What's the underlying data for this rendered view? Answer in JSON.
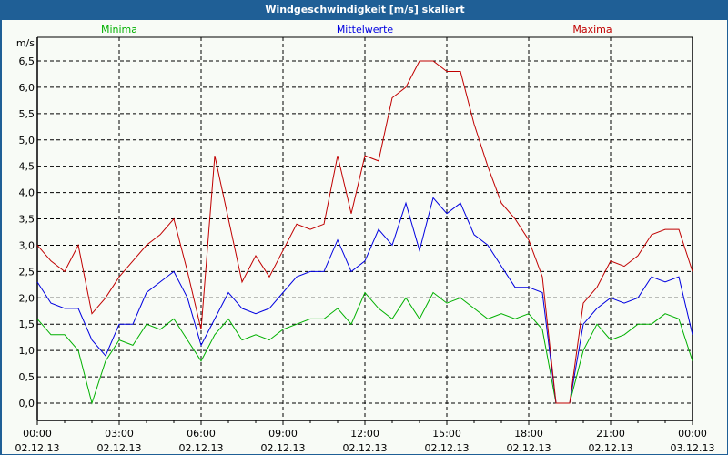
{
  "window": {
    "title": "Windgeschwindigkeit [m/s] skaliert"
  },
  "chart_data": {
    "type": "line",
    "title": "Windgeschwindigkeit [m/s] skaliert",
    "ylabel": "m/s",
    "xlabel": "",
    "ylim": [
      0,
      6.5
    ],
    "yticks": [
      "0,0",
      "0,5",
      "1,0",
      "1,5",
      "2,0",
      "2,5",
      "3,0",
      "3,5",
      "4,0",
      "4,5",
      "5,0",
      "5,5",
      "6,0",
      "6,5"
    ],
    "xlim_hours": [
      0,
      24
    ],
    "xticks": [
      {
        "time": "00:00",
        "date": "02.12.13"
      },
      {
        "time": "03:00",
        "date": "02.12.13"
      },
      {
        "time": "06:00",
        "date": "02.12.13"
      },
      {
        "time": "09:00",
        "date": "02.12.13"
      },
      {
        "time": "12:00",
        "date": "02.12.13"
      },
      {
        "time": "15:00",
        "date": "02.12.13"
      },
      {
        "time": "18:00",
        "date": "02.12.13"
      },
      {
        "time": "21:00",
        "date": "02.12.13"
      },
      {
        "time": "00:00",
        "date": "03.12.13"
      }
    ],
    "grid": true,
    "legend_position": "top",
    "x_step_hours": 0.5,
    "series": [
      {
        "name": "Minima",
        "color": "#00b000",
        "values": [
          1.6,
          1.3,
          1.3,
          1.0,
          0.0,
          0.8,
          1.2,
          1.1,
          1.5,
          1.4,
          1.6,
          1.2,
          0.8,
          1.3,
          1.6,
          1.2,
          1.3,
          1.2,
          1.4,
          1.5,
          1.6,
          1.6,
          1.8,
          1.5,
          2.1,
          1.8,
          1.6,
          2.0,
          1.6,
          2.1,
          1.9,
          2.0,
          1.8,
          1.6,
          1.7,
          1.6,
          1.7,
          1.4,
          0.0,
          0.0,
          1.0,
          1.5,
          1.2,
          1.3,
          1.5,
          1.5,
          1.7,
          1.6,
          0.8
        ]
      },
      {
        "name": "Mittelwerte",
        "color": "#0000e0",
        "values": [
          2.3,
          1.9,
          1.8,
          1.8,
          1.2,
          0.9,
          1.5,
          1.5,
          2.1,
          2.3,
          2.5,
          2.0,
          1.1,
          1.6,
          2.1,
          1.8,
          1.7,
          1.8,
          2.1,
          2.4,
          2.5,
          2.5,
          3.1,
          2.5,
          2.7,
          3.3,
          3.0,
          3.8,
          2.9,
          3.9,
          3.6,
          3.8,
          3.2,
          3.0,
          2.6,
          2.2,
          2.2,
          2.1,
          0.0,
          0.0,
          1.5,
          1.8,
          2.0,
          1.9,
          2.0,
          2.4,
          2.3,
          2.4,
          1.3
        ]
      },
      {
        "name": "Maxima",
        "color": "#c00000",
        "values": [
          3.0,
          2.7,
          2.5,
          3.0,
          1.7,
          2.0,
          2.4,
          2.7,
          3.0,
          3.2,
          3.5,
          2.5,
          1.4,
          4.7,
          3.5,
          2.3,
          2.8,
          2.4,
          2.9,
          3.4,
          3.3,
          3.4,
          4.7,
          3.6,
          4.7,
          4.6,
          5.8,
          6.0,
          6.5,
          6.5,
          6.3,
          6.3,
          5.3,
          4.5,
          3.8,
          3.5,
          3.1,
          2.4,
          0.0,
          0.0,
          1.9,
          2.2,
          2.7,
          2.6,
          2.8,
          3.2,
          3.3,
          3.3,
          2.5
        ]
      }
    ]
  }
}
